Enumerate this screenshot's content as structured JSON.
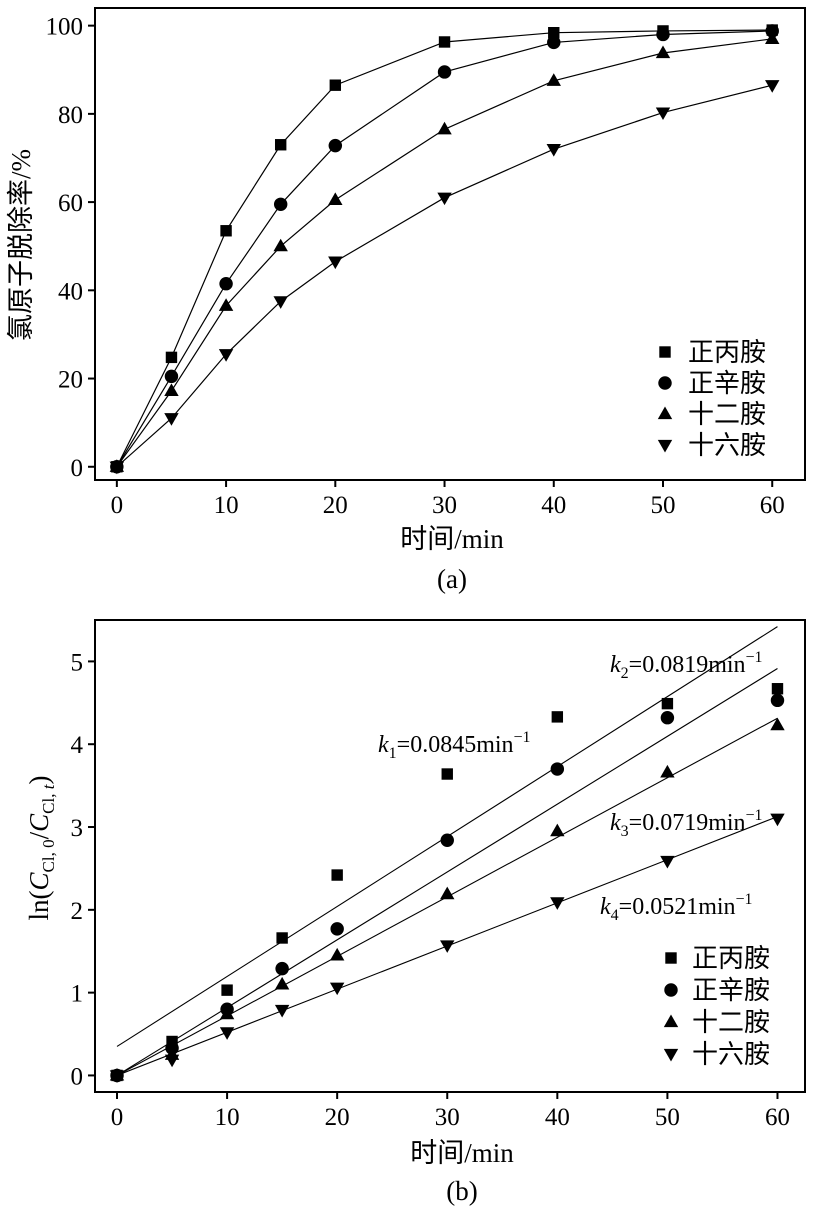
{
  "chart_data": [
    {
      "type": "line",
      "caption": "(a)",
      "xlabel": "时间/min",
      "ylabel": "氯原子脱除率/%",
      "xlim": [
        -2,
        63
      ],
      "ylim": [
        -3,
        104
      ],
      "xticks": [
        0,
        10,
        20,
        30,
        40,
        50,
        60
      ],
      "yticks": [
        0,
        20,
        40,
        60,
        80,
        100
      ],
      "x": [
        0,
        5,
        10,
        15,
        20,
        30,
        40,
        50,
        60
      ],
      "legend_position": "bottom-right",
      "series": [
        {
          "name": "正丙胺",
          "marker": "square",
          "values": [
            0,
            24.8,
            53.5,
            73.0,
            86.5,
            96.3,
            98.4,
            98.8,
            99.0
          ]
        },
        {
          "name": "正辛胺",
          "marker": "circle",
          "values": [
            0,
            20.5,
            41.5,
            59.5,
            72.8,
            89.5,
            96.2,
            98.0,
            98.8
          ]
        },
        {
          "name": "十二胺",
          "marker": "triangle-up",
          "values": [
            0,
            17.2,
            36.5,
            50.0,
            60.5,
            76.5,
            87.5,
            93.8,
            97.0
          ]
        },
        {
          "name": "十六胺",
          "marker": "triangle-down",
          "values": [
            0,
            11.0,
            25.5,
            37.5,
            46.5,
            61.0,
            72.0,
            80.3,
            86.5
          ]
        }
      ]
    },
    {
      "type": "scatter",
      "caption": "(b)",
      "xlabel": "时间/min",
      "ylabel": "ln(C_Cl,0/C_Cl,t)",
      "xlim": [
        -2,
        62.5
      ],
      "ylim": [
        -0.2,
        5.5
      ],
      "xticks": [
        0,
        10,
        20,
        30,
        40,
        50,
        60
      ],
      "yticks": [
        0,
        1,
        2,
        3,
        4,
        5
      ],
      "x": [
        0,
        5,
        10,
        15,
        20,
        30,
        40,
        50,
        60
      ],
      "legend_position": "bottom-right",
      "series": [
        {
          "name": "正丙胺",
          "marker": "square",
          "values": [
            0,
            0.41,
            1.03,
            1.66,
            2.42,
            3.64,
            4.33,
            4.49,
            4.67
          ],
          "fit": {
            "k_label": "1",
            "k": "=0.0845min",
            "slope": 0.0845,
            "intercept": 0.35
          }
        },
        {
          "name": "正辛胺",
          "marker": "circle",
          "values": [
            0,
            0.33,
            0.8,
            1.29,
            1.77,
            2.84,
            3.7,
            4.32,
            4.53
          ],
          "fit": {
            "k_label": "2",
            "k": "=0.0819min",
            "slope": 0.0819,
            "intercept": 0.0
          }
        },
        {
          "name": "十二胺",
          "marker": "triangle-up",
          "values": [
            0,
            0.25,
            0.74,
            1.1,
            1.45,
            2.19,
            2.95,
            3.66,
            4.23
          ],
          "fit": {
            "k_label": "3",
            "k": "=0.0719min",
            "slope": 0.0719,
            "intercept": 0.0
          }
        },
        {
          "name": "十六胺",
          "marker": "triangle-down",
          "values": [
            0,
            0.19,
            0.52,
            0.79,
            1.06,
            1.57,
            2.09,
            2.59,
            3.1
          ],
          "fit": {
            "k_label": "4",
            "k": "=0.0521min",
            "slope": 0.0521,
            "intercept": 0.0
          }
        }
      ],
      "k_symbol": "k",
      "k_unit_exp": "−1",
      "ylabel_parts": {
        "pre": "ln(",
        "c": "C",
        "sub0": "Cl, 0",
        "slash": "/",
        "subt_a": "Cl, ",
        "subt_b": "t",
        "post": ")"
      }
    }
  ]
}
